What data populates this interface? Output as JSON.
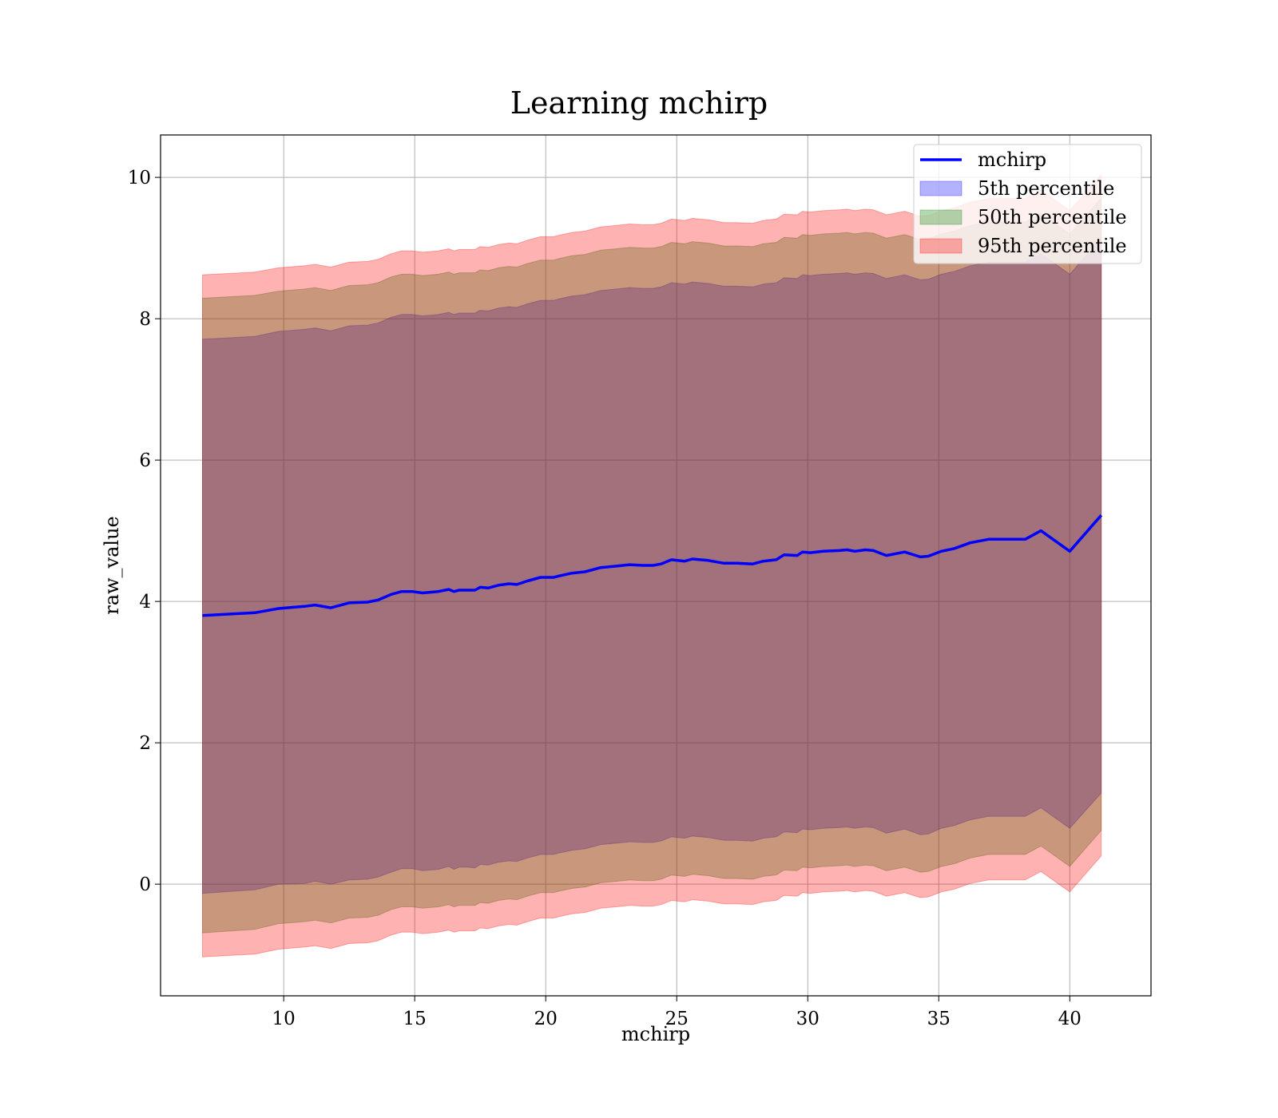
{
  "chart_data": {
    "type": "area",
    "title": "Learning mchirp",
    "xlabel": "mchirp",
    "ylabel": "raw_value",
    "xlim": [
      5.3,
      43.1
    ],
    "ylim": [
      -1.58,
      10.6
    ],
    "xticks": [
      10,
      15,
      20,
      25,
      30,
      35,
      40
    ],
    "yticks": [
      0,
      2,
      4,
      6,
      8,
      10
    ],
    "grid": true,
    "legend_position": "upper-right",
    "x": [
      6.9,
      8.9,
      9.8,
      10.8,
      11.2,
      11.8,
      12.5,
      13.2,
      13.6,
      14.1,
      14.5,
      14.9,
      15.3,
      15.6,
      15.9,
      16.3,
      16.5,
      16.7,
      17.0,
      17.3,
      17.5,
      17.8,
      18.2,
      18.6,
      18.9,
      19.3,
      19.8,
      20.3,
      20.5,
      21.0,
      21.5,
      22.1,
      22.7,
      23.2,
      23.7,
      24.1,
      24.4,
      24.8,
      25.3,
      25.6,
      26.2,
      26.8,
      27.3,
      27.9,
      28.3,
      28.8,
      29.1,
      29.6,
      29.8,
      30.1,
      30.6,
      31.2,
      31.5,
      31.8,
      32.2,
      32.5,
      33.0,
      33.7,
      34.3,
      34.6,
      35.1,
      35.6,
      36.2,
      36.9,
      37.6,
      38.3,
      38.9,
      40.0,
      41.2
    ],
    "series": [
      {
        "name": "mchirp",
        "role": "line",
        "color": "#0000ff",
        "values": [
          3.8,
          3.84,
          3.9,
          3.93,
          3.95,
          3.91,
          3.98,
          3.99,
          4.02,
          4.1,
          4.14,
          4.14,
          4.12,
          4.13,
          4.14,
          4.17,
          4.14,
          4.16,
          4.16,
          4.16,
          4.2,
          4.19,
          4.23,
          4.25,
          4.24,
          4.29,
          4.34,
          4.34,
          4.36,
          4.4,
          4.42,
          4.48,
          4.5,
          4.52,
          4.51,
          4.51,
          4.53,
          4.59,
          4.57,
          4.6,
          4.58,
          4.54,
          4.54,
          4.53,
          4.57,
          4.59,
          4.66,
          4.65,
          4.7,
          4.69,
          4.71,
          4.72,
          4.73,
          4.71,
          4.73,
          4.72,
          4.65,
          4.7,
          4.63,
          4.64,
          4.71,
          4.75,
          4.83,
          4.88,
          4.88,
          4.88,
          5.0,
          4.71,
          5.22
        ]
      },
      {
        "name": "5th percentile",
        "role": "band",
        "color": "#0000ff",
        "lower": [
          -0.13,
          -0.08,
          0.0,
          0.01,
          0.04,
          0.0,
          0.06,
          0.07,
          0.1,
          0.17,
          0.22,
          0.22,
          0.19,
          0.2,
          0.21,
          0.25,
          0.21,
          0.24,
          0.24,
          0.23,
          0.28,
          0.27,
          0.31,
          0.33,
          0.32,
          0.37,
          0.42,
          0.42,
          0.44,
          0.48,
          0.5,
          0.56,
          0.58,
          0.6,
          0.59,
          0.59,
          0.61,
          0.67,
          0.65,
          0.68,
          0.66,
          0.62,
          0.62,
          0.61,
          0.65,
          0.67,
          0.74,
          0.73,
          0.78,
          0.77,
          0.79,
          0.8,
          0.81,
          0.79,
          0.81,
          0.8,
          0.72,
          0.78,
          0.7,
          0.71,
          0.79,
          0.83,
          0.91,
          0.96,
          0.96,
          0.96,
          1.08,
          0.79,
          1.29
        ],
        "upper": [
          7.71,
          7.75,
          7.82,
          7.85,
          7.87,
          7.83,
          7.9,
          7.91,
          7.94,
          8.02,
          8.06,
          8.06,
          8.04,
          8.05,
          8.06,
          8.09,
          8.06,
          8.08,
          8.08,
          8.08,
          8.12,
          8.11,
          8.15,
          8.17,
          8.16,
          8.21,
          8.26,
          8.26,
          8.28,
          8.32,
          8.34,
          8.4,
          8.42,
          8.44,
          8.43,
          8.43,
          8.45,
          8.51,
          8.49,
          8.52,
          8.5,
          8.46,
          8.46,
          8.45,
          8.49,
          8.51,
          8.58,
          8.57,
          8.62,
          8.61,
          8.63,
          8.64,
          8.65,
          8.63,
          8.65,
          8.64,
          8.57,
          8.62,
          8.55,
          8.56,
          8.63,
          8.67,
          8.75,
          8.8,
          8.8,
          8.8,
          8.92,
          8.63,
          9.14
        ]
      },
      {
        "name": "50th percentile",
        "role": "band",
        "color": "#008000",
        "lower": [
          -0.69,
          -0.64,
          -0.56,
          -0.53,
          -0.51,
          -0.55,
          -0.48,
          -0.47,
          -0.44,
          -0.36,
          -0.32,
          -0.32,
          -0.34,
          -0.33,
          -0.32,
          -0.29,
          -0.32,
          -0.3,
          -0.3,
          -0.3,
          -0.26,
          -0.27,
          -0.23,
          -0.21,
          -0.22,
          -0.17,
          -0.12,
          -0.12,
          -0.1,
          -0.06,
          -0.04,
          0.02,
          0.04,
          0.06,
          0.05,
          0.05,
          0.07,
          0.13,
          0.11,
          0.14,
          0.12,
          0.08,
          0.08,
          0.07,
          0.11,
          0.13,
          0.2,
          0.19,
          0.24,
          0.23,
          0.25,
          0.26,
          0.27,
          0.25,
          0.27,
          0.26,
          0.19,
          0.24,
          0.17,
          0.18,
          0.25,
          0.29,
          0.37,
          0.42,
          0.42,
          0.42,
          0.54,
          0.25,
          0.76
        ],
        "upper": [
          8.29,
          8.33,
          8.39,
          8.42,
          8.44,
          8.4,
          8.47,
          8.48,
          8.51,
          8.59,
          8.63,
          8.63,
          8.61,
          8.62,
          8.63,
          8.66,
          8.63,
          8.65,
          8.65,
          8.65,
          8.69,
          8.68,
          8.72,
          8.74,
          8.73,
          8.78,
          8.83,
          8.83,
          8.85,
          8.89,
          8.91,
          8.97,
          8.99,
          9.01,
          9.0,
          9.0,
          9.02,
          9.08,
          9.06,
          9.09,
          9.07,
          9.03,
          9.03,
          9.02,
          9.06,
          9.08,
          9.15,
          9.14,
          9.19,
          9.18,
          9.2,
          9.21,
          9.22,
          9.2,
          9.22,
          9.21,
          9.14,
          9.19,
          9.12,
          9.13,
          9.2,
          9.24,
          9.32,
          9.37,
          9.37,
          9.37,
          9.49,
          9.2,
          9.71
        ]
      },
      {
        "name": "95th percentile",
        "role": "band",
        "color": "#ff0000",
        "lower": [
          -1.03,
          -0.99,
          -0.92,
          -0.89,
          -0.87,
          -0.91,
          -0.84,
          -0.83,
          -0.8,
          -0.72,
          -0.68,
          -0.68,
          -0.7,
          -0.69,
          -0.68,
          -0.65,
          -0.68,
          -0.66,
          -0.66,
          -0.66,
          -0.62,
          -0.63,
          -0.59,
          -0.57,
          -0.58,
          -0.53,
          -0.48,
          -0.48,
          -0.46,
          -0.42,
          -0.4,
          -0.34,
          -0.32,
          -0.3,
          -0.31,
          -0.31,
          -0.29,
          -0.23,
          -0.25,
          -0.22,
          -0.24,
          -0.28,
          -0.28,
          -0.29,
          -0.25,
          -0.23,
          -0.16,
          -0.17,
          -0.12,
          -0.13,
          -0.11,
          -0.1,
          -0.09,
          -0.11,
          -0.09,
          -0.1,
          -0.17,
          -0.12,
          -0.19,
          -0.18,
          -0.11,
          -0.07,
          0.01,
          0.06,
          0.06,
          0.06,
          0.18,
          -0.11,
          0.4
        ],
        "upper": [
          8.62,
          8.66,
          8.72,
          8.75,
          8.77,
          8.73,
          8.8,
          8.81,
          8.84,
          8.92,
          8.96,
          8.96,
          8.94,
          8.95,
          8.96,
          8.99,
          8.96,
          8.98,
          8.98,
          8.98,
          9.02,
          9.01,
          9.05,
          9.07,
          9.06,
          9.11,
          9.16,
          9.16,
          9.18,
          9.22,
          9.24,
          9.3,
          9.32,
          9.34,
          9.33,
          9.33,
          9.35,
          9.41,
          9.39,
          9.42,
          9.4,
          9.36,
          9.36,
          9.35,
          9.39,
          9.41,
          9.48,
          9.47,
          9.52,
          9.51,
          9.53,
          9.54,
          9.55,
          9.53,
          9.55,
          9.54,
          9.47,
          9.52,
          9.45,
          9.46,
          9.53,
          9.57,
          9.65,
          9.7,
          9.7,
          9.7,
          9.82,
          9.53,
          10.04
        ]
      }
    ]
  }
}
